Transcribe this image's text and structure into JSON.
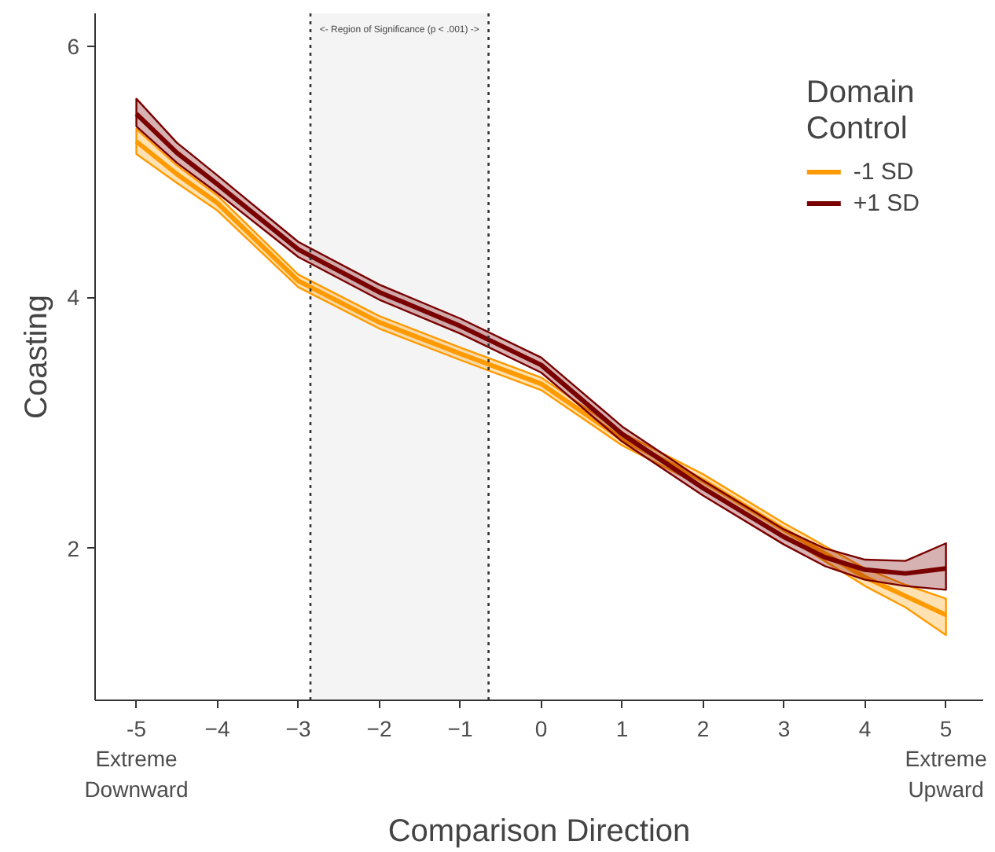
{
  "chart_data": {
    "type": "line",
    "xlabel": "Comparison Direction",
    "ylabel": "Coasting",
    "legend_title": "Domain\nControl",
    "x": [
      -5,
      -4.5,
      -4,
      -3,
      -2,
      -1,
      0,
      1,
      2,
      3,
      3.5,
      4,
      4.5,
      5
    ],
    "series": [
      {
        "name": "-1 SD",
        "color": "#ff9a00",
        "values": [
          5.24,
          4.98,
          4.75,
          4.13,
          3.8,
          3.55,
          3.31,
          2.87,
          2.54,
          2.15,
          1.96,
          1.77,
          1.62,
          1.47
        ],
        "lower": [
          5.14,
          4.91,
          4.69,
          4.08,
          3.75,
          3.5,
          3.26,
          2.82,
          2.49,
          2.1,
          1.9,
          1.7,
          1.53,
          1.31
        ],
        "upper": [
          5.34,
          5.05,
          4.81,
          4.18,
          3.85,
          3.6,
          3.36,
          2.92,
          2.59,
          2.2,
          2.02,
          1.84,
          1.71,
          1.6
        ]
      },
      {
        "name": "+1 SD",
        "color": "#7a0000",
        "values": [
          5.46,
          5.15,
          4.9,
          4.38,
          4.04,
          3.77,
          3.46,
          2.91,
          2.48,
          2.09,
          1.93,
          1.83,
          1.8,
          1.84
        ],
        "lower": [
          5.36,
          5.07,
          4.83,
          4.32,
          3.98,
          3.71,
          3.4,
          2.85,
          2.42,
          2.03,
          1.86,
          1.75,
          1.7,
          1.67
        ],
        "upper": [
          5.58,
          5.23,
          4.97,
          4.44,
          4.1,
          3.83,
          3.52,
          2.97,
          2.54,
          2.15,
          2.0,
          1.91,
          1.9,
          2.04
        ]
      }
    ],
    "xlim": [
      -5.51,
      5.46
    ],
    "ylim": [
      0.79,
      6.26
    ],
    "xticks": [
      {
        "value": -5,
        "label": "-5\nExtreme\nDownward"
      },
      -4,
      -3,
      -2,
      -1,
      0,
      1,
      2,
      3,
      4,
      {
        "value": 5,
        "label": "5\nExtreme\nUpward"
      }
    ],
    "yticks": [
      2,
      4,
      6
    ],
    "bands": [
      {
        "axis": "x",
        "from": -2.85,
        "to": -0.65,
        "label": "<- Region of Significance (p < .001) ->",
        "color": "#f4f4f4"
      }
    ],
    "ref_lines": [
      {
        "axis": "x",
        "value": -2.85,
        "line_style": "dotted",
        "color": "#333333"
      },
      {
        "axis": "x",
        "value": -0.65,
        "line_style": "dotted",
        "color": "#333333"
      }
    ],
    "grid": false,
    "legend": "top right"
  }
}
